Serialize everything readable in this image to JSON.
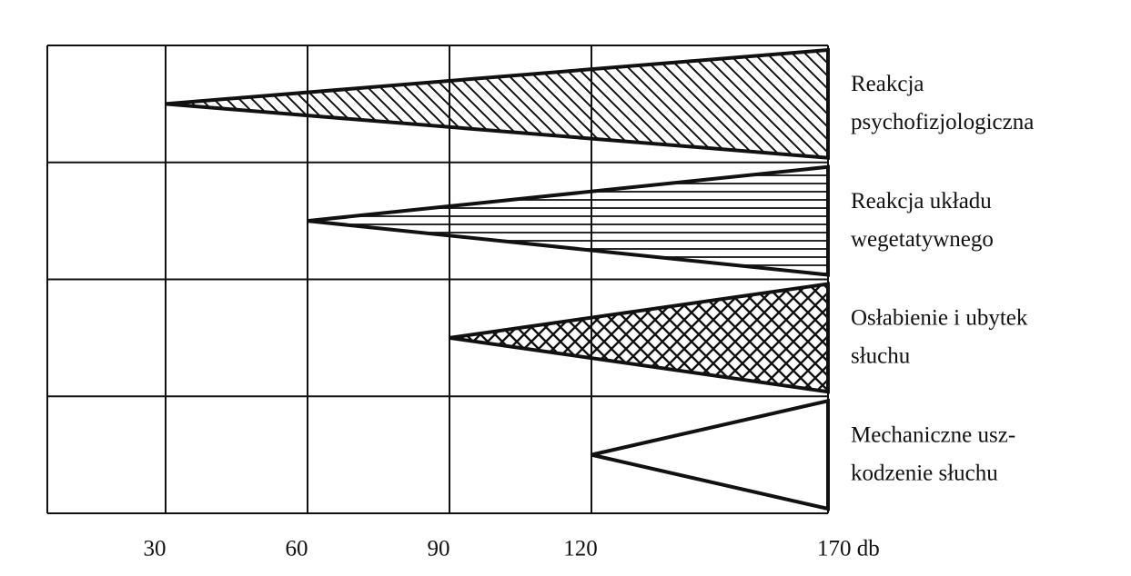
{
  "chart_data": {
    "type": "wedge",
    "series": [
      {
        "name": [
          "Reakcja",
          "psychofizjologiczna"
        ],
        "start": 30,
        "end": 170,
        "hatch": "diagonal"
      },
      {
        "name": [
          "Reakcja układu",
          "wegetatywnego"
        ],
        "start": 60,
        "end": 170,
        "hatch": "horizontal"
      },
      {
        "name": [
          "Osłabienie i ubytek",
          "słuchu"
        ],
        "start": 90,
        "end": 170,
        "hatch": "cross"
      },
      {
        "name": [
          "Mechaniczne usz-",
          "kodzenie słuchu"
        ],
        "start": 120,
        "end": 170,
        "hatch": "none"
      }
    ],
    "xlim": [
      5,
      170
    ],
    "xticks": [
      30,
      60,
      90,
      120,
      {
        "value": 170,
        "label": "170 db"
      }
    ],
    "grid": true
  }
}
